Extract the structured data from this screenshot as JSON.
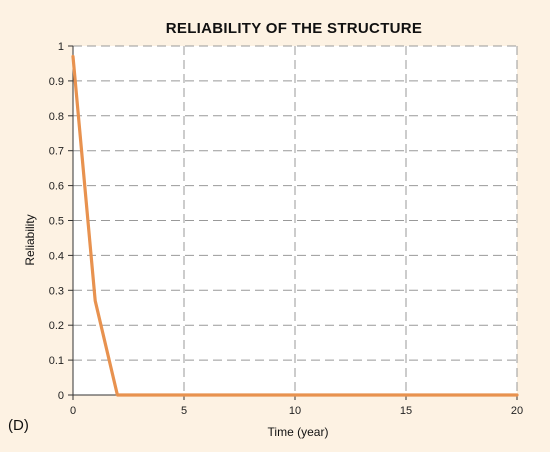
{
  "chart_data": {
    "type": "line",
    "title": "RELIABILITY OF THE STRUCTURE",
    "xlabel": "Time (year)",
    "ylabel": "Reliability",
    "panel_label": "(D)",
    "xlim": [
      0,
      20
    ],
    "ylim": [
      0,
      1
    ],
    "xticks": [
      0,
      5,
      10,
      15,
      20
    ],
    "yticks": [
      0,
      0.1,
      0.2,
      0.3,
      0.4,
      0.5,
      0.6,
      0.7,
      0.8,
      0.9,
      1
    ],
    "xtick_labels": [
      "0",
      "5",
      "10",
      "15",
      "20"
    ],
    "ytick_labels": [
      "0",
      "0.1",
      "0.2",
      "0.3",
      "0.4",
      "0.5",
      "0.6",
      "0.7",
      "0.8",
      "0.9",
      "1"
    ],
    "grid": true,
    "colors": {
      "background": "#fdf2e3",
      "plot_background": "#ffffff",
      "line": "#e8924f",
      "grid": "#999999",
      "axis": "#333333"
    },
    "series": [
      {
        "x": [
          0,
          1,
          2,
          3,
          4,
          5,
          6,
          7,
          8,
          9,
          10,
          11,
          12,
          13,
          14,
          15,
          16,
          17,
          18,
          19,
          20
        ],
        "y": [
          0.97,
          0.27,
          0,
          0,
          0,
          0,
          0,
          0,
          0,
          0,
          0,
          0,
          0,
          0,
          0,
          0,
          0,
          0,
          0,
          0,
          0
        ]
      }
    ]
  }
}
